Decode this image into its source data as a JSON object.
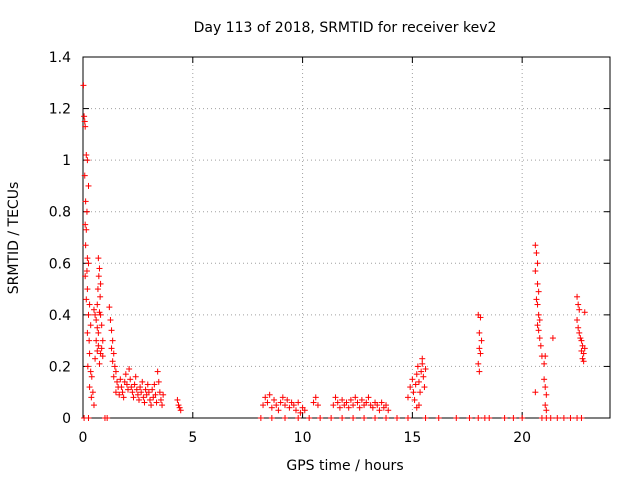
{
  "chart_data": {
    "type": "scatter",
    "title": "Day 113 of 2018, SRMTID for receiver kev2",
    "xlabel": "GPS time / hours",
    "ylabel": "SRMTID / TECUs",
    "xlim": [
      0,
      24
    ],
    "ylim": [
      0,
      1.4
    ],
    "x_ticks": [
      0,
      5,
      10,
      15,
      20
    ],
    "x_tick_labels": [
      "0",
      "5",
      "10",
      "15",
      "20"
    ],
    "y_ticks": [
      0,
      0.2,
      0.4,
      0.6,
      0.8,
      1.0,
      1.2,
      1.4
    ],
    "y_tick_labels": [
      "0",
      "0.2",
      "0.4",
      "0.6",
      "0.8",
      "1",
      "1.2",
      "1.4"
    ],
    "grid": true,
    "marker": "+",
    "series": [
      {
        "name": "SRMTID kev2",
        "color": "#ff0000",
        "points": [
          [
            0.02,
            1.29
          ],
          [
            0.05,
            1.17
          ],
          [
            0.08,
            1.15
          ],
          [
            0.1,
            1.13
          ],
          [
            0.15,
            1.02
          ],
          [
            0.2,
            1.0
          ],
          [
            0.08,
            0.94
          ],
          [
            0.25,
            0.9
          ],
          [
            0.12,
            0.84
          ],
          [
            0.18,
            0.8
          ],
          [
            0.1,
            0.75
          ],
          [
            0.15,
            0.73
          ],
          [
            0.12,
            0.67
          ],
          [
            0.2,
            0.62
          ],
          [
            0.25,
            0.6
          ],
          [
            0.18,
            0.57
          ],
          [
            0.1,
            0.55
          ],
          [
            0.2,
            0.5
          ],
          [
            0.15,
            0.46
          ],
          [
            0.3,
            0.44
          ],
          [
            0.25,
            0.4
          ],
          [
            0.35,
            0.36
          ],
          [
            0.2,
            0.33
          ],
          [
            0.28,
            0.3
          ],
          [
            0.3,
            0.25
          ],
          [
            0.22,
            0.2
          ],
          [
            0.35,
            0.18
          ],
          [
            0.4,
            0.16
          ],
          [
            0.3,
            0.12
          ],
          [
            0.45,
            0.1
          ],
          [
            0.38,
            0.08
          ],
          [
            0.5,
            0.05
          ],
          [
            0.05,
            0.0
          ],
          [
            0.25,
            0.0
          ],
          [
            0.5,
            0.42
          ],
          [
            0.55,
            0.4
          ],
          [
            0.6,
            0.38
          ],
          [
            0.65,
            0.35
          ],
          [
            0.7,
            0.33
          ],
          [
            0.75,
            0.41
          ],
          [
            0.6,
            0.3
          ],
          [
            0.7,
            0.28
          ],
          [
            0.65,
            0.26
          ],
          [
            0.8,
            0.25
          ],
          [
            0.55,
            0.23
          ],
          [
            0.75,
            0.21
          ],
          [
            0.7,
            0.62
          ],
          [
            0.75,
            0.58
          ],
          [
            0.72,
            0.55
          ],
          [
            0.8,
            0.52
          ],
          [
            0.68,
            0.5
          ],
          [
            0.78,
            0.47
          ],
          [
            0.65,
            0.44
          ],
          [
            0.8,
            0.4
          ],
          [
            0.85,
            0.36
          ],
          [
            0.9,
            0.3
          ],
          [
            0.85,
            0.27
          ],
          [
            0.9,
            0.24
          ],
          [
            1.0,
            0.0
          ],
          [
            1.1,
            0.0
          ],
          [
            1.2,
            0.43
          ],
          [
            1.25,
            0.38
          ],
          [
            1.3,
            0.34
          ],
          [
            1.35,
            0.3
          ],
          [
            1.3,
            0.27
          ],
          [
            1.4,
            0.25
          ],
          [
            1.35,
            0.22
          ],
          [
            1.45,
            0.2
          ],
          [
            1.5,
            0.18
          ],
          [
            1.4,
            0.16
          ],
          [
            1.55,
            0.14
          ],
          [
            1.6,
            0.12
          ],
          [
            1.5,
            0.1
          ],
          [
            1.65,
            0.09
          ],
          [
            1.7,
            0.15
          ],
          [
            1.75,
            0.12
          ],
          [
            1.8,
            0.1
          ],
          [
            1.85,
            0.08
          ],
          [
            1.9,
            0.14
          ],
          [
            1.95,
            0.17
          ],
          [
            2.0,
            0.13
          ],
          [
            2.05,
            0.11
          ],
          [
            2.1,
            0.19
          ],
          [
            2.15,
            0.15
          ],
          [
            2.2,
            0.12
          ],
          [
            2.25,
            0.1
          ],
          [
            2.3,
            0.08
          ],
          [
            2.35,
            0.13
          ],
          [
            2.4,
            0.16
          ],
          [
            2.45,
            0.11
          ],
          [
            2.5,
            0.09
          ],
          [
            2.55,
            0.07
          ],
          [
            2.6,
            0.12
          ],
          [
            2.65,
            0.1
          ],
          [
            2.7,
            0.14
          ],
          [
            2.75,
            0.08
          ],
          [
            2.8,
            0.06
          ],
          [
            2.85,
            0.11
          ],
          [
            2.9,
            0.09
          ],
          [
            2.95,
            0.13
          ],
          [
            3.0,
            0.1
          ],
          [
            3.05,
            0.07
          ],
          [
            3.1,
            0.05
          ],
          [
            3.15,
            0.11
          ],
          [
            3.2,
            0.08
          ],
          [
            3.25,
            0.13
          ],
          [
            3.3,
            0.09
          ],
          [
            3.35,
            0.06
          ],
          [
            3.4,
            0.18
          ],
          [
            3.45,
            0.14
          ],
          [
            3.5,
            0.1
          ],
          [
            3.55,
            0.07
          ],
          [
            3.6,
            0.05
          ],
          [
            3.65,
            0.09
          ],
          [
            4.3,
            0.07
          ],
          [
            4.35,
            0.05
          ],
          [
            4.4,
            0.04
          ],
          [
            4.45,
            0.03
          ],
          [
            8.2,
            0.05
          ],
          [
            8.3,
            0.08
          ],
          [
            8.4,
            0.06
          ],
          [
            8.5,
            0.09
          ],
          [
            8.6,
            0.04
          ],
          [
            8.7,
            0.07
          ],
          [
            8.8,
            0.05
          ],
          [
            8.9,
            0.03
          ],
          [
            9.0,
            0.06
          ],
          [
            9.1,
            0.08
          ],
          [
            9.2,
            0.05
          ],
          [
            9.3,
            0.07
          ],
          [
            9.4,
            0.04
          ],
          [
            9.5,
            0.06
          ],
          [
            9.6,
            0.05
          ],
          [
            9.7,
            0.03
          ],
          [
            9.8,
            0.06
          ],
          [
            9.9,
            0.02
          ],
          [
            10.0,
            0.04
          ],
          [
            10.1,
            0.03
          ],
          [
            10.5,
            0.06
          ],
          [
            10.6,
            0.08
          ],
          [
            10.7,
            0.05
          ],
          [
            11.4,
            0.05
          ],
          [
            11.5,
            0.08
          ],
          [
            11.6,
            0.06
          ],
          [
            11.7,
            0.04
          ],
          [
            11.8,
            0.07
          ],
          [
            11.9,
            0.05
          ],
          [
            12.0,
            0.06
          ],
          [
            12.1,
            0.04
          ],
          [
            12.2,
            0.07
          ],
          [
            12.3,
            0.05
          ],
          [
            12.4,
            0.08
          ],
          [
            12.5,
            0.06
          ],
          [
            12.6,
            0.04
          ],
          [
            12.7,
            0.07
          ],
          [
            12.8,
            0.05
          ],
          [
            12.9,
            0.06
          ],
          [
            13.0,
            0.08
          ],
          [
            13.1,
            0.05
          ],
          [
            13.2,
            0.04
          ],
          [
            13.3,
            0.06
          ],
          [
            13.4,
            0.05
          ],
          [
            13.5,
            0.03
          ],
          [
            13.6,
            0.06
          ],
          [
            13.7,
            0.04
          ],
          [
            13.8,
            0.05
          ],
          [
            13.9,
            0.03
          ],
          [
            8.1,
            0.0
          ],
          [
            8.6,
            0.0
          ],
          [
            9.2,
            0.0
          ],
          [
            9.8,
            0.0
          ],
          [
            10.3,
            0.0
          ],
          [
            10.8,
            0.0
          ],
          [
            11.3,
            0.0
          ],
          [
            11.8,
            0.0
          ],
          [
            12.3,
            0.0
          ],
          [
            12.8,
            0.0
          ],
          [
            13.3,
            0.0
          ],
          [
            13.8,
            0.0
          ],
          [
            14.3,
            0.0
          ],
          [
            14.8,
            0.0
          ],
          [
            14.8,
            0.08
          ],
          [
            14.9,
            0.12
          ],
          [
            15.0,
            0.15
          ],
          [
            15.05,
            0.1
          ],
          [
            15.1,
            0.07
          ],
          [
            15.15,
            0.13
          ],
          [
            15.2,
            0.17
          ],
          [
            15.25,
            0.2
          ],
          [
            15.3,
            0.14
          ],
          [
            15.35,
            0.1
          ],
          [
            15.4,
            0.18
          ],
          [
            15.45,
            0.21
          ],
          [
            15.5,
            0.16
          ],
          [
            15.55,
            0.12
          ],
          [
            15.6,
            0.19
          ],
          [
            15.45,
            0.23
          ],
          [
            15.3,
            0.05
          ],
          [
            15.2,
            0.04
          ],
          [
            15.6,
            0.0
          ],
          [
            16.2,
            0.0
          ],
          [
            17.0,
            0.0
          ],
          [
            17.6,
            0.0
          ],
          [
            18.0,
            0.0
          ],
          [
            18.3,
            0.0
          ],
          [
            18.5,
            0.0
          ],
          [
            19.2,
            0.0
          ],
          [
            19.6,
            0.0
          ],
          [
            20.0,
            0.0
          ],
          [
            18.0,
            0.4
          ],
          [
            18.1,
            0.39
          ],
          [
            18.05,
            0.33
          ],
          [
            18.15,
            0.3
          ],
          [
            18.05,
            0.27
          ],
          [
            18.1,
            0.25
          ],
          [
            18.0,
            0.21
          ],
          [
            18.05,
            0.18
          ],
          [
            20.6,
            0.67
          ],
          [
            20.65,
            0.64
          ],
          [
            20.7,
            0.6
          ],
          [
            20.6,
            0.57
          ],
          [
            20.7,
            0.52
          ],
          [
            20.75,
            0.49
          ],
          [
            20.65,
            0.46
          ],
          [
            20.7,
            0.44
          ],
          [
            20.75,
            0.4
          ],
          [
            20.8,
            0.38
          ],
          [
            20.7,
            0.36
          ],
          [
            20.75,
            0.34
          ],
          [
            20.8,
            0.31
          ],
          [
            20.85,
            0.28
          ],
          [
            20.9,
            0.24
          ],
          [
            20.6,
            0.1
          ],
          [
            21.0,
            0.21
          ],
          [
            21.05,
            0.24
          ],
          [
            21.0,
            0.15
          ],
          [
            21.05,
            0.12
          ],
          [
            21.1,
            0.09
          ],
          [
            21.05,
            0.05
          ],
          [
            21.1,
            0.03
          ],
          [
            21.4,
            0.31
          ],
          [
            20.9,
            0.0
          ],
          [
            21.1,
            0.0
          ],
          [
            21.3,
            0.0
          ],
          [
            21.6,
            0.0
          ],
          [
            21.9,
            0.0
          ],
          [
            22.2,
            0.0
          ],
          [
            22.5,
            0.47
          ],
          [
            22.55,
            0.44
          ],
          [
            22.6,
            0.42
          ],
          [
            22.5,
            0.38
          ],
          [
            22.55,
            0.35
          ],
          [
            22.6,
            0.33
          ],
          [
            22.65,
            0.31
          ],
          [
            22.7,
            0.3
          ],
          [
            22.75,
            0.28
          ],
          [
            22.7,
            0.26
          ],
          [
            22.8,
            0.25
          ],
          [
            22.75,
            0.23
          ],
          [
            22.8,
            0.22
          ],
          [
            22.85,
            0.41
          ],
          [
            22.85,
            0.27
          ],
          [
            22.5,
            0.0
          ],
          [
            22.7,
            0.0
          ]
        ]
      }
    ]
  }
}
